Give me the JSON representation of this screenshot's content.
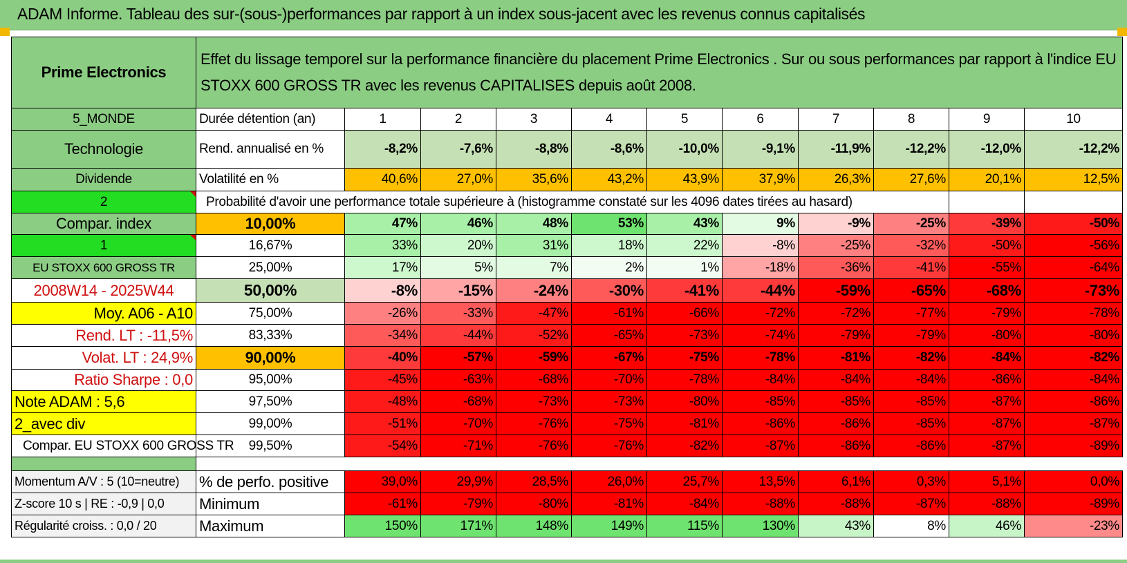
{
  "header": {
    "title": "ADAM Informe. Tableau des sur-(sous-)performances par rapport à un index sous-jacent avec les revenus connus capitalisés"
  },
  "info": {
    "company": "Prime Electronics",
    "description": "Effet du lissage temporel sur la performance financière du placement Prime Electronics . Sur ou sous performances par rapport à l'indice EU STOXX 600 GROSS TR avec les revenus CAPITALISES depuis août 2008.",
    "region": "5_MONDE",
    "sector": "Technologie",
    "dividend_label": "Dividende",
    "dividend_value": "2",
    "compar_index_label": "Compar. index",
    "compar_index_value": "1",
    "index_name": "EU STOXX 600 GROSS TR",
    "period": "2008W14 - 2025W44",
    "moy": "Moy. A06 - A10",
    "rend_lt": "Rend. LT :    -11,5%",
    "volat_lt": "Volat. LT :    24,9%",
    "sharpe": "Ratio Sharpe :    0,0",
    "note": "Note ADAM : 5,6",
    "avec_div": "2_avec div",
    "compar_full": "Compar. EU STOXX 600 GROSS TR"
  },
  "labels": {
    "duree": "Durée détention (an)",
    "rend": "Rend. annualisé en %",
    "vol": "Volatilité en %",
    "proba": "Probabilité d'avoir une performance totale supérieure à (histogramme constaté sur les 4096 dates tirées au hasard)",
    "pct_pos": "% de perfo. positive",
    "min": "Minimum",
    "max": "Maximum",
    "momentum": "Momentum A/V : 5 (10=neutre)",
    "zscore": "Z-score 10 s | RE : -0,9 | 0,0",
    "regul": "Régularité croiss. : 0,0 / 20"
  },
  "years": [
    "1",
    "2",
    "3",
    "4",
    "5",
    "6",
    "7",
    "8",
    "9",
    "10"
  ],
  "rend": [
    "-8,2%",
    "-7,6%",
    "-8,8%",
    "-8,6%",
    "-10,0%",
    "-9,1%",
    "-11,9%",
    "-12,2%",
    "-12,0%",
    "-12,2%"
  ],
  "vol": [
    "40,6%",
    "27,0%",
    "35,6%",
    "43,2%",
    "43,9%",
    "37,9%",
    "26,3%",
    "27,6%",
    "20,1%",
    "12,5%"
  ],
  "prob_rows": [
    {
      "p": "10,00%",
      "v": [
        "47%",
        "46%",
        "48%",
        "53%",
        "43%",
        "9%",
        "-9%",
        "-25%",
        "-39%",
        "-50%"
      ]
    },
    {
      "p": "16,67%",
      "v": [
        "33%",
        "20%",
        "31%",
        "18%",
        "22%",
        "-8%",
        "-25%",
        "-32%",
        "-50%",
        "-56%"
      ]
    },
    {
      "p": "25,00%",
      "v": [
        "17%",
        "5%",
        "7%",
        "2%",
        "1%",
        "-18%",
        "-36%",
        "-41%",
        "-55%",
        "-64%"
      ]
    },
    {
      "p": "50,00%",
      "v": [
        "-8%",
        "-15%",
        "-24%",
        "-30%",
        "-41%",
        "-44%",
        "-59%",
        "-65%",
        "-68%",
        "-73%"
      ]
    },
    {
      "p": "75,00%",
      "v": [
        "-26%",
        "-33%",
        "-47%",
        "-61%",
        "-66%",
        "-72%",
        "-72%",
        "-77%",
        "-79%",
        "-78%"
      ]
    },
    {
      "p": "83,33%",
      "v": [
        "-34%",
        "-44%",
        "-52%",
        "-65%",
        "-73%",
        "-74%",
        "-79%",
        "-79%",
        "-80%",
        "-80%"
      ]
    },
    {
      "p": "90,00%",
      "v": [
        "-40%",
        "-57%",
        "-59%",
        "-67%",
        "-75%",
        "-78%",
        "-81%",
        "-82%",
        "-84%",
        "-82%"
      ]
    },
    {
      "p": "95,00%",
      "v": [
        "-45%",
        "-63%",
        "-68%",
        "-70%",
        "-78%",
        "-84%",
        "-84%",
        "-84%",
        "-86%",
        "-84%"
      ]
    },
    {
      "p": "97,50%",
      "v": [
        "-48%",
        "-68%",
        "-73%",
        "-73%",
        "-80%",
        "-85%",
        "-85%",
        "-85%",
        "-87%",
        "-86%"
      ]
    },
    {
      "p": "99,00%",
      "v": [
        "-51%",
        "-70%",
        "-76%",
        "-75%",
        "-81%",
        "-86%",
        "-86%",
        "-85%",
        "-87%",
        "-87%"
      ]
    },
    {
      "p": "99,50%",
      "v": [
        "-54%",
        "-71%",
        "-76%",
        "-76%",
        "-82%",
        "-87%",
        "-86%",
        "-86%",
        "-87%",
        "-89%"
      ]
    }
  ],
  "pct_pos": [
    "39,0%",
    "29,9%",
    "28,5%",
    "26,0%",
    "25,7%",
    "13,5%",
    "6,1%",
    "0,3%",
    "5,1%",
    "0,0%"
  ],
  "minimum": [
    "-61%",
    "-79%",
    "-80%",
    "-81%",
    "-84%",
    "-88%",
    "-88%",
    "-87%",
    "-88%",
    "-89%"
  ],
  "maximum": [
    "150%",
    "171%",
    "148%",
    "149%",
    "115%",
    "130%",
    "43%",
    "8%",
    "46%",
    "-23%"
  ],
  "colors": {
    "header_green": "#8ccd84",
    "orange": "#ffc000",
    "yellow": "#ffff00",
    "bright_green": "#22dd22",
    "red": "#ff0000"
  }
}
